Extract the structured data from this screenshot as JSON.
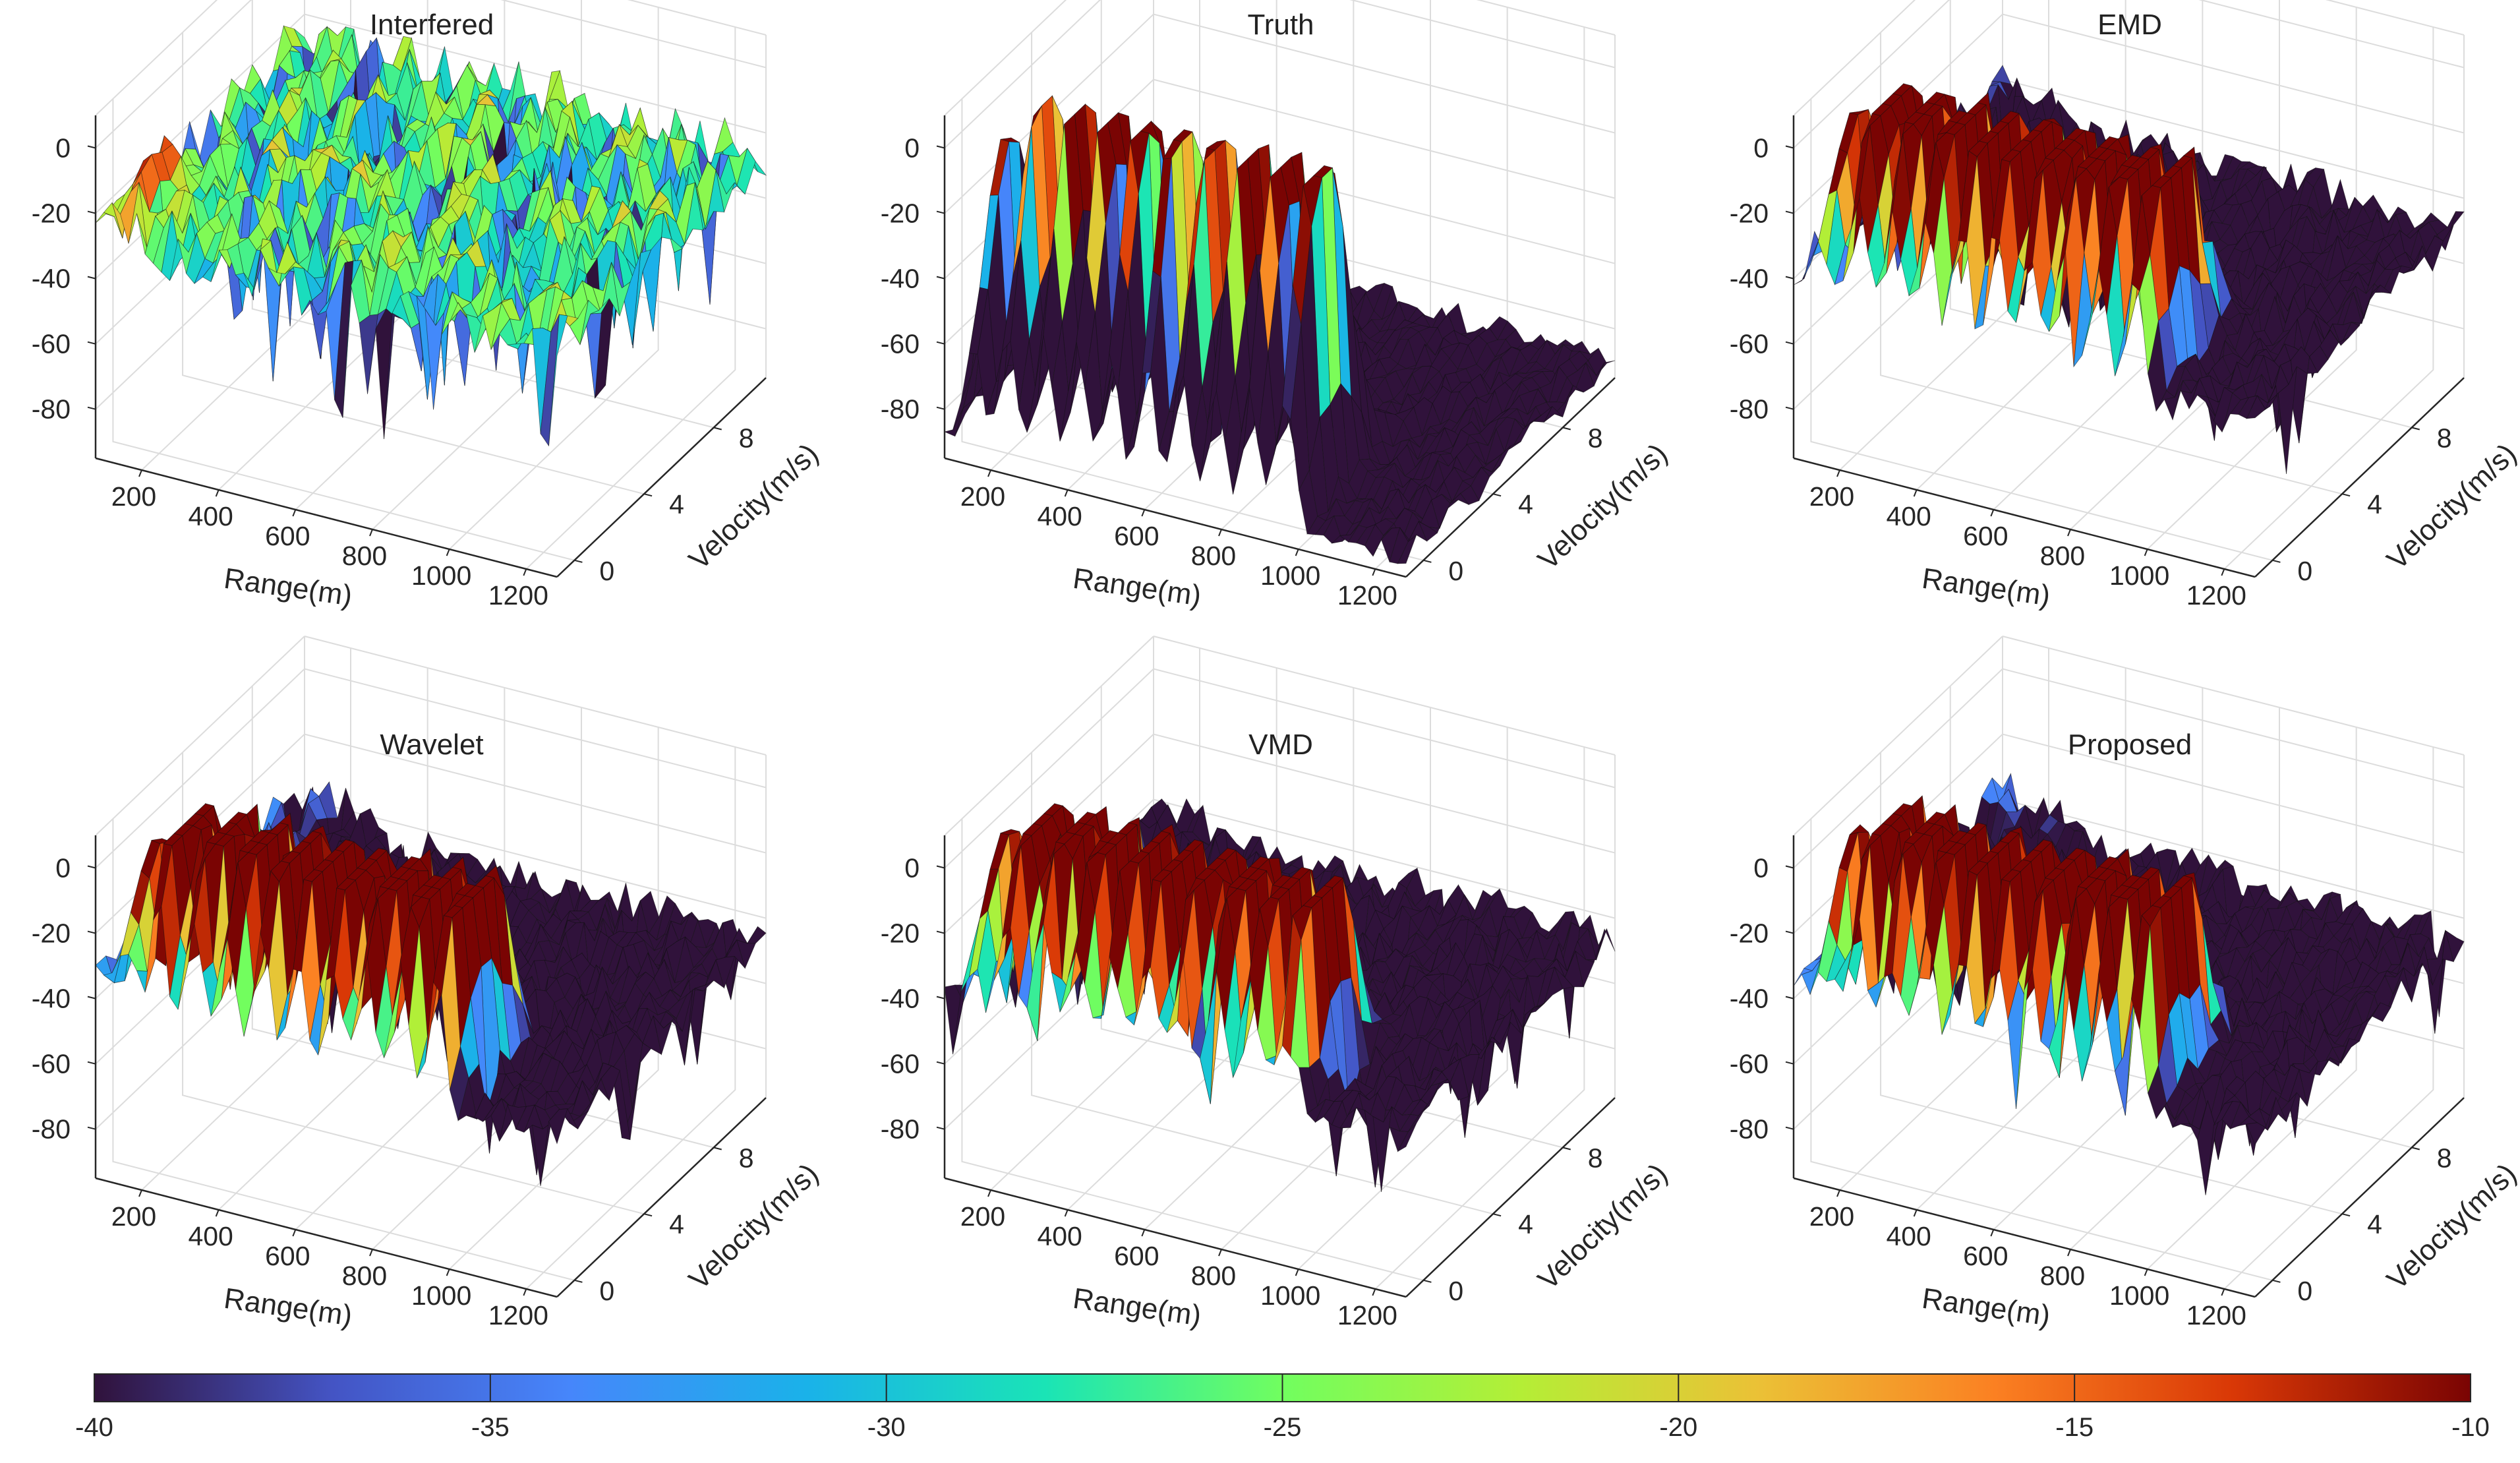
{
  "chart_data": {
    "type": "surface3d",
    "description_axes": {
      "xlabel": "Range(m)",
      "ylabel": "Velocity(m/s)",
      "zlabel": "",
      "x_ticks": [
        "200",
        "400",
        "600",
        "800",
        "1000",
        "1200"
      ],
      "y_ticks": [
        "0",
        "4",
        "8"
      ],
      "z_ticks": [
        "0",
        "-20",
        "-40",
        "-60",
        "-80"
      ],
      "xlim": [
        80,
        1280
      ],
      "ylim": [
        -1,
        11
      ],
      "zlim": [
        -95,
        10
      ]
    },
    "panels": [
      {
        "title": "Interfered",
        "floor": -26,
        "noise": 9,
        "ramp": 0,
        "peaks": []
      },
      {
        "title": "Truth",
        "floor": -88,
        "noise": 4,
        "ramp": 0,
        "peaks": [
          [
            155,
            4
          ],
          [
            245,
            17
          ],
          [
            335,
            19
          ],
          [
            425,
            20
          ],
          [
            515,
            20
          ],
          [
            605,
            21
          ],
          [
            695,
            21
          ],
          [
            785,
            21
          ],
          [
            875,
            22
          ],
          [
            965,
            22
          ]
        ]
      },
      {
        "title": "EMD",
        "floor": -48,
        "noise": 6,
        "ramp": 12,
        "peaks": [
          [
            155,
            5
          ],
          [
            245,
            36
          ],
          [
            335,
            38
          ],
          [
            425,
            40
          ],
          [
            515,
            40
          ],
          [
            605,
            40
          ],
          [
            695,
            40
          ],
          [
            785,
            40
          ],
          [
            875,
            40
          ],
          [
            965,
            40
          ]
        ]
      },
      {
        "title": "Wavelet",
        "floor": -46,
        "noise": 6,
        "ramp": 14,
        "peaks": [
          [
            155,
            3
          ],
          [
            245,
            35
          ],
          [
            335,
            37
          ],
          [
            425,
            39
          ],
          [
            515,
            40
          ],
          [
            605,
            41
          ],
          [
            695,
            41
          ],
          [
            785,
            42
          ],
          [
            875,
            44
          ],
          [
            965,
            46
          ]
        ]
      },
      {
        "title": "VMD",
        "floor": -46,
        "noise": 6,
        "ramp": 8,
        "peaks": [
          [
            155,
            5
          ],
          [
            245,
            33
          ],
          [
            335,
            35
          ],
          [
            425,
            36
          ],
          [
            515,
            37
          ],
          [
            605,
            37
          ],
          [
            695,
            37
          ],
          [
            785,
            37
          ],
          [
            875,
            37
          ],
          [
            965,
            37
          ]
        ]
      },
      {
        "title": "Proposed",
        "floor": -46,
        "noise": 6,
        "ramp": 12,
        "peaks": [
          [
            155,
            5
          ],
          [
            245,
            35
          ],
          [
            335,
            36
          ],
          [
            425,
            37
          ],
          [
            515,
            37
          ],
          [
            605,
            37
          ],
          [
            695,
            37
          ],
          [
            785,
            37
          ],
          [
            875,
            37
          ],
          [
            965,
            37
          ]
        ]
      }
    ],
    "colorbar": {
      "colormap": "turbo",
      "range": [
        -40,
        -10
      ],
      "ticks": [
        "-40",
        "-35",
        "-30",
        "-25",
        "-20",
        "-15",
        "-10"
      ]
    }
  }
}
